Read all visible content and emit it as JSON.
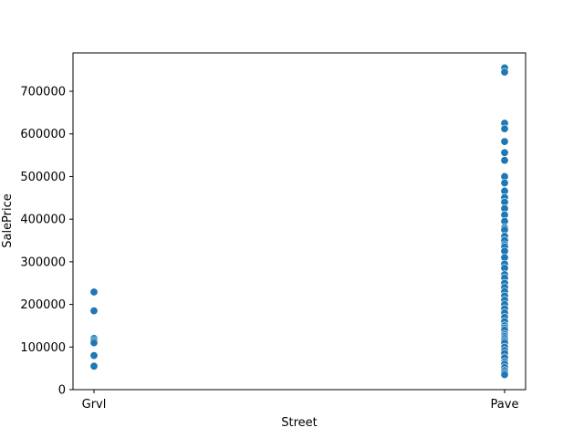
{
  "chart_data": {
    "type": "scatter",
    "title": "",
    "xlabel": "Street",
    "ylabel": "SalePrice",
    "categories": [
      "Grvl",
      "Pave"
    ],
    "ylim": [
      0,
      790000
    ],
    "yticks": [
      0,
      100000,
      200000,
      300000,
      400000,
      500000,
      600000,
      700000
    ],
    "grid": false,
    "marker_color": "#1f77b4",
    "series": [
      {
        "category": "Grvl",
        "values": [
          229000,
          185000,
          120000,
          115000,
          110000,
          80000,
          55000
        ]
      },
      {
        "category": "Pave",
        "values": [
          755000,
          745000,
          625000,
          612000,
          582000,
          556000,
          538000,
          500000,
          485000,
          466000,
          451000,
          440000,
          425000,
          410000,
          395000,
          380000,
          375000,
          360000,
          350000,
          340000,
          335000,
          325000,
          310000,
          295000,
          285000,
          270000,
          262000,
          250000,
          240000,
          230000,
          220000,
          210000,
          200000,
          190000,
          180000,
          170000,
          160000,
          150000,
          145000,
          140000,
          130000,
          125000,
          120000,
          115000,
          110000,
          100000,
          92000,
          85000,
          75000,
          65000,
          60000,
          52000,
          45000,
          40000,
          35000
        ]
      }
    ]
  }
}
